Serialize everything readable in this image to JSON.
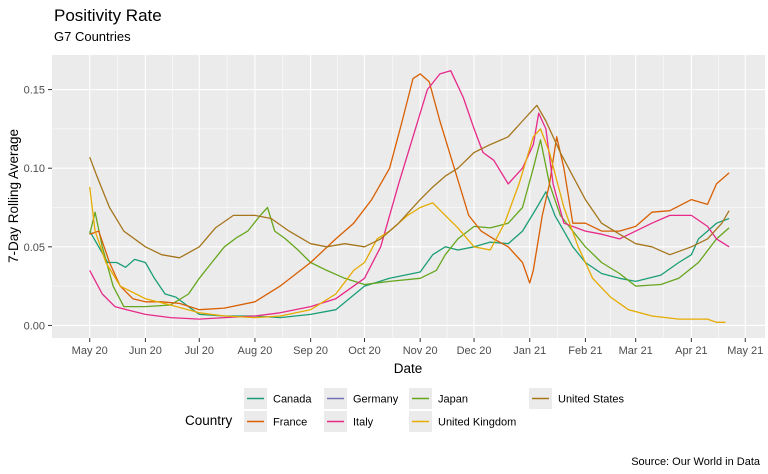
{
  "chart_data": {
    "type": "line",
    "title": "Positivity Rate",
    "subtitle": "G7 Countries",
    "xlabel": "Date",
    "ylabel": "7-Day Rolling Average",
    "caption": "Source:  Our World in Data",
    "legend_title": "Country",
    "legend_position": "bottom",
    "grid": true,
    "x_ticks": [
      "May 20",
      "Jun 20",
      "Jul 20",
      "Aug 20",
      "Sep 20",
      "Oct 20",
      "Nov 20",
      "Dec 20",
      "Jan 21",
      "Feb 21",
      "Mar 21",
      "Apr 21",
      "May 21"
    ],
    "x_tick_dates": [
      "2020-05-01",
      "2020-06-01",
      "2020-07-01",
      "2020-08-01",
      "2020-09-01",
      "2020-10-01",
      "2020-11-01",
      "2020-12-01",
      "2021-01-01",
      "2021-02-01",
      "2021-03-01",
      "2021-04-01",
      "2021-05-01"
    ],
    "xlim": [
      "2020-04-10",
      "2021-05-12"
    ],
    "y_ticks": [
      "0.00",
      "0.05",
      "0.10",
      "0.15"
    ],
    "ylim": [
      -0.008,
      0.172
    ],
    "series": [
      {
        "name": "Canada",
        "color": "#1B9E77",
        "points": [
          [
            "2020-05-01",
            0.06
          ],
          [
            "2020-05-06",
            0.05
          ],
          [
            "2020-05-11",
            0.04
          ],
          [
            "2020-05-16",
            0.04
          ],
          [
            "2020-05-21",
            0.037
          ],
          [
            "2020-05-26",
            0.042
          ],
          [
            "2020-06-01",
            0.04
          ],
          [
            "2020-06-06",
            0.03
          ],
          [
            "2020-06-12",
            0.02
          ],
          [
            "2020-06-18",
            0.018
          ],
          [
            "2020-06-25",
            0.012
          ],
          [
            "2020-07-01",
            0.007
          ],
          [
            "2020-07-15",
            0.006
          ],
          [
            "2020-08-01",
            0.006
          ],
          [
            "2020-08-15",
            0.005
          ],
          [
            "2020-09-01",
            0.007
          ],
          [
            "2020-09-15",
            0.01
          ],
          [
            "2020-10-01",
            0.025
          ],
          [
            "2020-10-15",
            0.03
          ],
          [
            "2020-11-01",
            0.034
          ],
          [
            "2020-11-08",
            0.045
          ],
          [
            "2020-11-15",
            0.05
          ],
          [
            "2020-11-22",
            0.048
          ],
          [
            "2020-12-01",
            0.05
          ],
          [
            "2020-12-10",
            0.053
          ],
          [
            "2020-12-20",
            0.052
          ],
          [
            "2020-12-28",
            0.06
          ],
          [
            "2021-01-05",
            0.075
          ],
          [
            "2021-01-10",
            0.085
          ],
          [
            "2021-01-15",
            0.07
          ],
          [
            "2021-01-20",
            0.06
          ],
          [
            "2021-01-25",
            0.05
          ],
          [
            "2021-02-01",
            0.04
          ],
          [
            "2021-02-10",
            0.033
          ],
          [
            "2021-02-20",
            0.03
          ],
          [
            "2021-03-01",
            0.028
          ],
          [
            "2021-03-15",
            0.032
          ],
          [
            "2021-03-25",
            0.04
          ],
          [
            "2021-04-01",
            0.045
          ],
          [
            "2021-04-05",
            0.055
          ],
          [
            "2021-04-10",
            0.06
          ],
          [
            "2021-04-15",
            0.065
          ],
          [
            "2021-04-22",
            0.068
          ]
        ]
      },
      {
        "name": "Germany",
        "color": "#7570B3",
        "points": []
      },
      {
        "name": "Japan",
        "color": "#66A61E",
        "points": [
          [
            "2020-05-01",
            0.058
          ],
          [
            "2020-05-04",
            0.072
          ],
          [
            "2020-05-08",
            0.05
          ],
          [
            "2020-05-14",
            0.025
          ],
          [
            "2020-05-20",
            0.012
          ],
          [
            "2020-06-01",
            0.012
          ],
          [
            "2020-06-15",
            0.013
          ],
          [
            "2020-06-25",
            0.02
          ],
          [
            "2020-07-01",
            0.03
          ],
          [
            "2020-07-08",
            0.04
          ],
          [
            "2020-07-15",
            0.05
          ],
          [
            "2020-07-22",
            0.056
          ],
          [
            "2020-07-28",
            0.06
          ],
          [
            "2020-08-04",
            0.07
          ],
          [
            "2020-08-08",
            0.075
          ],
          [
            "2020-08-12",
            0.06
          ],
          [
            "2020-08-18",
            0.055
          ],
          [
            "2020-08-25",
            0.048
          ],
          [
            "2020-09-01",
            0.04
          ],
          [
            "2020-09-10",
            0.035
          ],
          [
            "2020-09-20",
            0.03
          ],
          [
            "2020-10-01",
            0.026
          ],
          [
            "2020-10-15",
            0.028
          ],
          [
            "2020-11-01",
            0.03
          ],
          [
            "2020-11-10",
            0.035
          ],
          [
            "2020-11-15",
            0.045
          ],
          [
            "2020-11-22",
            0.055
          ],
          [
            "2020-12-01",
            0.063
          ],
          [
            "2020-12-10",
            0.062
          ],
          [
            "2020-12-20",
            0.065
          ],
          [
            "2020-12-28",
            0.075
          ],
          [
            "2021-01-03",
            0.1
          ],
          [
            "2021-01-07",
            0.118
          ],
          [
            "2021-01-12",
            0.09
          ],
          [
            "2021-01-18",
            0.07
          ],
          [
            "2021-01-25",
            0.06
          ],
          [
            "2021-02-01",
            0.05
          ],
          [
            "2021-02-10",
            0.04
          ],
          [
            "2021-02-20",
            0.033
          ],
          [
            "2021-03-01",
            0.025
          ],
          [
            "2021-03-15",
            0.026
          ],
          [
            "2021-03-25",
            0.03
          ],
          [
            "2021-04-05",
            0.04
          ],
          [
            "2021-04-15",
            0.055
          ],
          [
            "2021-04-22",
            0.062
          ]
        ]
      },
      {
        "name": "France",
        "color": "#D95F02",
        "points": [
          [
            "2020-05-01",
            0.058
          ],
          [
            "2020-05-06",
            0.06
          ],
          [
            "2020-05-12",
            0.04
          ],
          [
            "2020-05-18",
            0.025
          ],
          [
            "2020-05-25",
            0.017
          ],
          [
            "2020-06-01",
            0.015
          ],
          [
            "2020-06-10",
            0.015
          ],
          [
            "2020-06-20",
            0.014
          ],
          [
            "2020-07-01",
            0.01
          ],
          [
            "2020-07-15",
            0.011
          ],
          [
            "2020-08-01",
            0.015
          ],
          [
            "2020-08-15",
            0.025
          ],
          [
            "2020-09-01",
            0.04
          ],
          [
            "2020-09-15",
            0.055
          ],
          [
            "2020-09-25",
            0.065
          ],
          [
            "2020-10-05",
            0.08
          ],
          [
            "2020-10-15",
            0.1
          ],
          [
            "2020-10-22",
            0.13
          ],
          [
            "2020-10-28",
            0.157
          ],
          [
            "2020-11-01",
            0.16
          ],
          [
            "2020-11-06",
            0.155
          ],
          [
            "2020-11-12",
            0.13
          ],
          [
            "2020-11-20",
            0.1
          ],
          [
            "2020-11-28",
            0.07
          ],
          [
            "2020-12-05",
            0.06
          ],
          [
            "2020-12-12",
            0.055
          ],
          [
            "2020-12-20",
            0.05
          ],
          [
            "2020-12-28",
            0.04
          ],
          [
            "2021-01-01",
            0.027
          ],
          [
            "2021-01-03",
            0.035
          ],
          [
            "2021-01-08",
            0.07
          ],
          [
            "2021-01-12",
            0.09
          ],
          [
            "2021-01-16",
            0.12
          ],
          [
            "2021-01-20",
            0.1
          ],
          [
            "2021-01-25",
            0.065
          ],
          [
            "2021-02-01",
            0.065
          ],
          [
            "2021-02-10",
            0.06
          ],
          [
            "2021-02-20",
            0.06
          ],
          [
            "2021-03-01",
            0.063
          ],
          [
            "2021-03-10",
            0.072
          ],
          [
            "2021-03-20",
            0.073
          ],
          [
            "2021-04-01",
            0.08
          ],
          [
            "2021-04-10",
            0.077
          ],
          [
            "2021-04-15",
            0.09
          ],
          [
            "2021-04-22",
            0.097
          ]
        ]
      },
      {
        "name": "Italy",
        "color": "#E7298A",
        "points": [
          [
            "2020-05-01",
            0.035
          ],
          [
            "2020-05-08",
            0.02
          ],
          [
            "2020-05-15",
            0.012
          ],
          [
            "2020-05-25",
            0.009
          ],
          [
            "2020-06-01",
            0.007
          ],
          [
            "2020-06-15",
            0.005
          ],
          [
            "2020-07-01",
            0.004
          ],
          [
            "2020-07-15",
            0.005
          ],
          [
            "2020-08-01",
            0.006
          ],
          [
            "2020-08-15",
            0.008
          ],
          [
            "2020-09-01",
            0.012
          ],
          [
            "2020-09-15",
            0.017
          ],
          [
            "2020-10-01",
            0.03
          ],
          [
            "2020-10-10",
            0.05
          ],
          [
            "2020-10-20",
            0.09
          ],
          [
            "2020-10-28",
            0.12
          ],
          [
            "2020-11-05",
            0.15
          ],
          [
            "2020-11-12",
            0.16
          ],
          [
            "2020-11-18",
            0.162
          ],
          [
            "2020-11-25",
            0.145
          ],
          [
            "2020-12-01",
            0.125
          ],
          [
            "2020-12-06",
            0.11
          ],
          [
            "2020-12-12",
            0.105
          ],
          [
            "2020-12-20",
            0.09
          ],
          [
            "2020-12-28",
            0.1
          ],
          [
            "2021-01-03",
            0.115
          ],
          [
            "2021-01-06",
            0.135
          ],
          [
            "2021-01-10",
            0.125
          ],
          [
            "2021-01-14",
            0.09
          ],
          [
            "2021-01-20",
            0.065
          ],
          [
            "2021-02-01",
            0.06
          ],
          [
            "2021-02-10",
            0.058
          ],
          [
            "2021-02-20",
            0.055
          ],
          [
            "2021-03-01",
            0.06
          ],
          [
            "2021-03-10",
            0.065
          ],
          [
            "2021-03-20",
            0.07
          ],
          [
            "2021-04-01",
            0.07
          ],
          [
            "2021-04-10",
            0.063
          ],
          [
            "2021-04-15",
            0.055
          ],
          [
            "2021-04-22",
            0.05
          ]
        ]
      },
      {
        "name": "United Kingdom",
        "color": "#E6AB02",
        "points": [
          [
            "2020-05-01",
            0.088
          ],
          [
            "2020-05-04",
            0.06
          ],
          [
            "2020-05-10",
            0.04
          ],
          [
            "2020-05-18",
            0.025
          ],
          [
            "2020-06-01",
            0.017
          ],
          [
            "2020-06-15",
            0.013
          ],
          [
            "2020-07-01",
            0.008
          ],
          [
            "2020-07-15",
            0.006
          ],
          [
            "2020-08-01",
            0.005
          ],
          [
            "2020-08-15",
            0.006
          ],
          [
            "2020-09-01",
            0.01
          ],
          [
            "2020-09-15",
            0.02
          ],
          [
            "2020-09-25",
            0.035
          ],
          [
            "2020-10-01",
            0.04
          ],
          [
            "2020-10-08",
            0.055
          ],
          [
            "2020-10-15",
            0.06
          ],
          [
            "2020-10-25",
            0.07
          ],
          [
            "2020-11-01",
            0.075
          ],
          [
            "2020-11-08",
            0.078
          ],
          [
            "2020-11-15",
            0.07
          ],
          [
            "2020-11-22",
            0.062
          ],
          [
            "2020-12-01",
            0.05
          ],
          [
            "2020-12-10",
            0.048
          ],
          [
            "2020-12-18",
            0.065
          ],
          [
            "2020-12-26",
            0.09
          ],
          [
            "2021-01-03",
            0.12
          ],
          [
            "2021-01-07",
            0.125
          ],
          [
            "2021-01-12",
            0.11
          ],
          [
            "2021-01-20",
            0.075
          ],
          [
            "2021-01-28",
            0.05
          ],
          [
            "2021-02-05",
            0.03
          ],
          [
            "2021-02-15",
            0.018
          ],
          [
            "2021-02-25",
            0.01
          ],
          [
            "2021-03-10",
            0.006
          ],
          [
            "2021-03-25",
            0.004
          ],
          [
            "2021-04-10",
            0.004
          ],
          [
            "2021-04-15",
            0.002
          ],
          [
            "2021-04-20",
            0.002
          ]
        ]
      },
      {
        "name": "United States",
        "color": "#A6761D",
        "points": [
          [
            "2020-05-01",
            0.107
          ],
          [
            "2020-05-05",
            0.095
          ],
          [
            "2020-05-12",
            0.075
          ],
          [
            "2020-05-20",
            0.06
          ],
          [
            "2020-06-01",
            0.05
          ],
          [
            "2020-06-10",
            0.045
          ],
          [
            "2020-06-20",
            0.043
          ],
          [
            "2020-07-01",
            0.05
          ],
          [
            "2020-07-10",
            0.062
          ],
          [
            "2020-07-20",
            0.07
          ],
          [
            "2020-08-01",
            0.07
          ],
          [
            "2020-08-10",
            0.068
          ],
          [
            "2020-08-20",
            0.06
          ],
          [
            "2020-09-01",
            0.052
          ],
          [
            "2020-09-10",
            0.05
          ],
          [
            "2020-09-20",
            0.052
          ],
          [
            "2020-10-01",
            0.05
          ],
          [
            "2020-10-10",
            0.055
          ],
          [
            "2020-10-20",
            0.065
          ],
          [
            "2020-11-01",
            0.08
          ],
          [
            "2020-11-08",
            0.088
          ],
          [
            "2020-11-15",
            0.095
          ],
          [
            "2020-11-22",
            0.1
          ],
          [
            "2020-12-01",
            0.11
          ],
          [
            "2020-12-10",
            0.115
          ],
          [
            "2020-12-20",
            0.12
          ],
          [
            "2020-12-28",
            0.13
          ],
          [
            "2021-01-05",
            0.14
          ],
          [
            "2021-01-10",
            0.13
          ],
          [
            "2021-01-18",
            0.11
          ],
          [
            "2021-01-25",
            0.095
          ],
          [
            "2021-02-01",
            0.08
          ],
          [
            "2021-02-10",
            0.065
          ],
          [
            "2021-02-20",
            0.058
          ],
          [
            "2021-03-01",
            0.052
          ],
          [
            "2021-03-10",
            0.05
          ],
          [
            "2021-03-20",
            0.045
          ],
          [
            "2021-04-01",
            0.05
          ],
          [
            "2021-04-10",
            0.055
          ],
          [
            "2021-04-18",
            0.065
          ],
          [
            "2021-04-22",
            0.073
          ]
        ]
      }
    ]
  },
  "legend": {
    "title": "Country",
    "items": [
      {
        "label": "Canada",
        "color": "#1B9E77"
      },
      {
        "label": "France",
        "color": "#D95F02"
      },
      {
        "label": "Germany",
        "color": "#7570B3"
      },
      {
        "label": "Italy",
        "color": "#E7298A"
      },
      {
        "label": "Japan",
        "color": "#66A61E"
      },
      {
        "label": "United Kingdom",
        "color": "#E6AB02"
      },
      {
        "label": "United States",
        "color": "#A6761D"
      }
    ]
  }
}
